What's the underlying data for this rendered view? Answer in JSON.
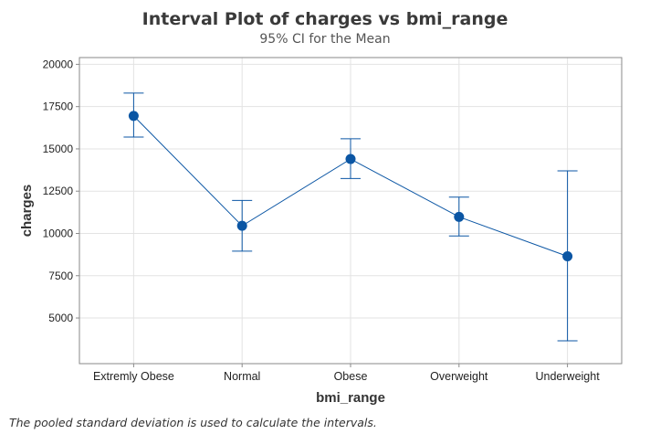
{
  "chart_data": {
    "type": "interval",
    "title": "Interval Plot of charges vs bmi_range",
    "subtitle": "95% CI for the Mean",
    "xlabel": "bmi_range",
    "ylabel": "charges",
    "categories": [
      "Extremly Obese",
      "Normal",
      "Obese",
      "Overweight",
      "Underweight"
    ],
    "means": [
      16950,
      10450,
      14400,
      10980,
      8650
    ],
    "ci_lower": [
      15700,
      8950,
      13250,
      9850,
      3650
    ],
    "ci_upper": [
      18300,
      11950,
      15600,
      12150,
      13700
    ],
    "ylim": [
      2300,
      20400
    ],
    "yticks": [
      5000,
      7500,
      10000,
      12500,
      15000,
      17500,
      20000
    ],
    "grid": true,
    "color": "#0b56a4"
  },
  "footnote": "The pooled standard deviation is used to calculate the intervals."
}
